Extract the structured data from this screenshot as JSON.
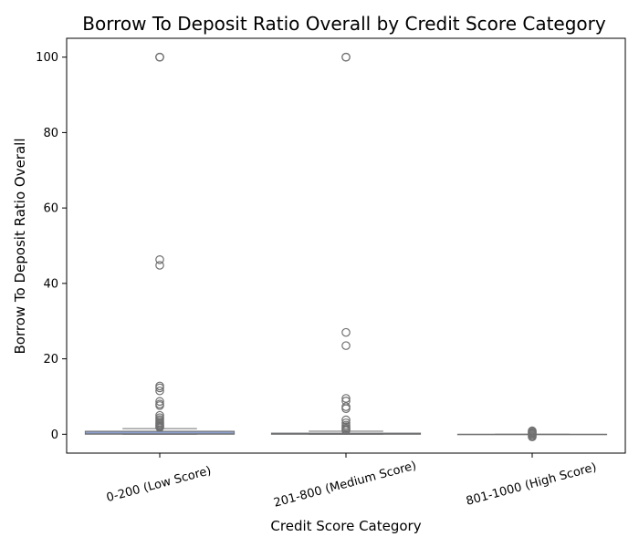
{
  "chart_data": {
    "type": "box",
    "title": "Borrow To Deposit Ratio Overall by Credit Score Category",
    "xlabel": "Credit Score Category",
    "ylabel": "Borrow To Deposit Ratio Overall",
    "categories": [
      "0-200 (Low Score)",
      "201-800 (Medium Score)",
      "801-1000 (High Score)"
    ],
    "ylim": [
      -5,
      105
    ],
    "yticks": [
      0,
      20,
      40,
      60,
      80,
      100
    ],
    "grid": false,
    "box_color": "#8da0cb",
    "series": [
      {
        "category": "0-200 (Low Score)",
        "q1": 0.0,
        "median": 0.1,
        "q3": 0.8,
        "whisker_low": 0.0,
        "whisker_high": 1.5,
        "outliers": [
          100,
          100,
          100,
          46.3,
          44.8,
          12.8,
          12.3,
          11.5,
          8.7,
          8.0,
          7.6,
          5.0,
          4.4,
          3.9,
          3.5,
          3.1,
          2.8,
          2.5,
          2.2,
          2.0,
          1.8
        ]
      },
      {
        "category": "201-800 (Medium Score)",
        "q1": 0.0,
        "median": 0.05,
        "q3": 0.3,
        "whisker_low": 0.0,
        "whisker_high": 0.8,
        "outliers": [
          100,
          100,
          27.0,
          23.5,
          9.5,
          8.8,
          7.3,
          6.8,
          3.8,
          3.0,
          2.4,
          2.0,
          1.6,
          1.3,
          1.0
        ]
      },
      {
        "category": "801-1000 (High Score)",
        "q1": 0.0,
        "median": 0.0,
        "q3": 0.0,
        "whisker_low": 0.0,
        "whisker_high": 0.0,
        "outliers": [
          0.9,
          0.6,
          0.4,
          0.2,
          -0.1,
          -0.4,
          -0.7
        ]
      }
    ]
  }
}
